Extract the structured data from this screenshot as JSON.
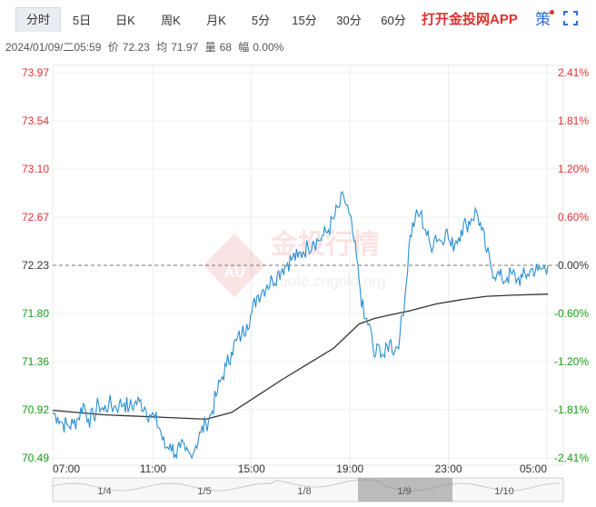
{
  "tabs": [
    {
      "label": "分时",
      "active": true
    },
    {
      "label": "5日"
    },
    {
      "label": "日K"
    },
    {
      "label": "周K"
    },
    {
      "label": "月K"
    },
    {
      "label": "5分"
    },
    {
      "label": "15分"
    },
    {
      "label": "30分"
    },
    {
      "label": "60分"
    }
  ],
  "app_link": "打开金投网APP",
  "ce_icon_label": "策",
  "fullscreen_icon": "fullscreen-icon",
  "info": {
    "datetime": "2024/01/09/二05:59",
    "price_label": "价",
    "price": "72.23",
    "avg_label": "均",
    "avg": "71.97",
    "vol_label": "量",
    "vol": "68",
    "amp_label": "幅",
    "amp": "0.00%"
  },
  "watermark": {
    "brand": "金投行情",
    "url": "quote.cngold.org",
    "logo_text": "AU"
  },
  "colors": {
    "price_line": "#2b8fcf",
    "avg_line": "#333333",
    "up": "#e03030",
    "down": "#12a012",
    "ref": "#777777",
    "navigator_highlight": "#8a8a8a"
  },
  "chart_data": {
    "type": "line",
    "y_left_ticks": [
      "73.97",
      "73.54",
      "73.10",
      "72.67",
      "72.23",
      "71.80",
      "71.36",
      "70.92",
      "70.49"
    ],
    "y_right_ticks": [
      "2.41%",
      "1.81%",
      "1.20%",
      "0.60%",
      "0.00%",
      "-0.60%",
      "-1.20%",
      "-1.81%",
      "-2.41%"
    ],
    "ylim": [
      70.49,
      73.97
    ],
    "reference_price": 72.23,
    "x_ticks": [
      "07:00",
      "11:00",
      "15:00",
      "19:00",
      "23:00",
      "05:00"
    ],
    "navigator_labels": [
      "1/4",
      "1/5",
      "1/8",
      "1/9",
      "1/10"
    ],
    "price_series": [
      [
        0,
        70.9
      ],
      [
        1,
        70.86
      ],
      [
        2,
        70.8
      ],
      [
        3,
        70.78
      ],
      [
        4,
        70.8
      ],
      [
        5,
        70.85
      ],
      [
        6,
        70.98
      ],
      [
        7,
        70.84
      ],
      [
        8,
        70.86
      ],
      [
        9,
        70.98
      ],
      [
        10,
        70.92
      ],
      [
        11,
        70.98
      ],
      [
        12,
        70.95
      ],
      [
        13,
        70.97
      ],
      [
        14,
        70.99
      ],
      [
        15,
        70.94
      ],
      [
        16,
        70.98
      ],
      [
        17,
        71.0
      ],
      [
        18,
        70.95
      ],
      [
        19,
        70.88
      ],
      [
        20,
        70.85
      ],
      [
        21,
        70.75
      ],
      [
        22,
        70.58
      ],
      [
        23,
        70.62
      ],
      [
        24,
        70.52
      ],
      [
        25,
        70.58
      ],
      [
        26,
        70.55
      ],
      [
        27,
        70.52
      ],
      [
        28,
        70.6
      ],
      [
        29,
        70.72
      ],
      [
        30,
        70.8
      ],
      [
        31,
        70.88
      ],
      [
        32,
        71.05
      ],
      [
        33,
        71.2
      ],
      [
        34,
        71.32
      ],
      [
        35,
        71.45
      ],
      [
        36,
        71.55
      ],
      [
        37,
        71.6
      ],
      [
        38,
        71.7
      ],
      [
        39,
        71.8
      ],
      [
        40,
        71.95
      ],
      [
        41,
        72.0
      ],
      [
        42,
        72.05
      ],
      [
        43,
        72.1
      ],
      [
        44,
        72.15
      ],
      [
        45,
        72.2
      ],
      [
        46,
        72.25
      ],
      [
        47,
        72.3
      ],
      [
        48,
        72.3
      ],
      [
        49,
        72.35
      ],
      [
        50,
        72.4
      ],
      [
        51,
        72.45
      ],
      [
        52,
        72.45
      ],
      [
        53,
        72.5
      ],
      [
        54,
        72.55
      ],
      [
        55,
        72.65
      ],
      [
        56,
        72.75
      ],
      [
        57,
        72.85
      ],
      [
        58,
        72.7
      ],
      [
        59,
        72.45
      ],
      [
        60,
        72.1
      ],
      [
        61,
        71.75
      ],
      [
        62,
        71.7
      ],
      [
        63,
        71.4
      ],
      [
        64,
        71.5
      ],
      [
        65,
        71.4
      ],
      [
        66,
        71.55
      ],
      [
        67,
        71.45
      ],
      [
        68,
        71.6
      ],
      [
        69,
        71.95
      ],
      [
        70,
        72.5
      ],
      [
        71,
        72.65
      ],
      [
        72,
        72.7
      ],
      [
        73,
        72.55
      ],
      [
        74,
        72.4
      ],
      [
        75,
        72.5
      ],
      [
        76,
        72.45
      ],
      [
        77,
        72.55
      ],
      [
        78,
        72.4
      ],
      [
        79,
        72.45
      ],
      [
        80,
        72.55
      ],
      [
        81,
        72.6
      ],
      [
        82,
        72.65
      ],
      [
        83,
        72.72
      ],
      [
        84,
        72.55
      ],
      [
        85,
        72.35
      ],
      [
        86,
        72.2
      ],
      [
        87,
        72.15
      ],
      [
        88,
        72.1
      ],
      [
        89,
        72.12
      ],
      [
        90,
        72.15
      ],
      [
        91,
        72.1
      ],
      [
        92,
        72.12
      ],
      [
        93,
        72.15
      ],
      [
        94,
        72.2
      ],
      [
        95,
        72.18
      ],
      [
        96,
        72.2
      ],
      [
        97,
        72.23
      ]
    ],
    "avg_series": [
      [
        0,
        70.92
      ],
      [
        10,
        70.88
      ],
      [
        20,
        70.86
      ],
      [
        30,
        70.84
      ],
      [
        35,
        70.9
      ],
      [
        40,
        71.05
      ],
      [
        45,
        71.2
      ],
      [
        50,
        71.34
      ],
      [
        55,
        71.48
      ],
      [
        60,
        71.7
      ],
      [
        63,
        71.75
      ],
      [
        66,
        71.78
      ],
      [
        70,
        71.82
      ],
      [
        75,
        71.88
      ],
      [
        80,
        71.92
      ],
      [
        85,
        71.95
      ],
      [
        90,
        71.96
      ],
      [
        97,
        71.97
      ]
    ]
  }
}
